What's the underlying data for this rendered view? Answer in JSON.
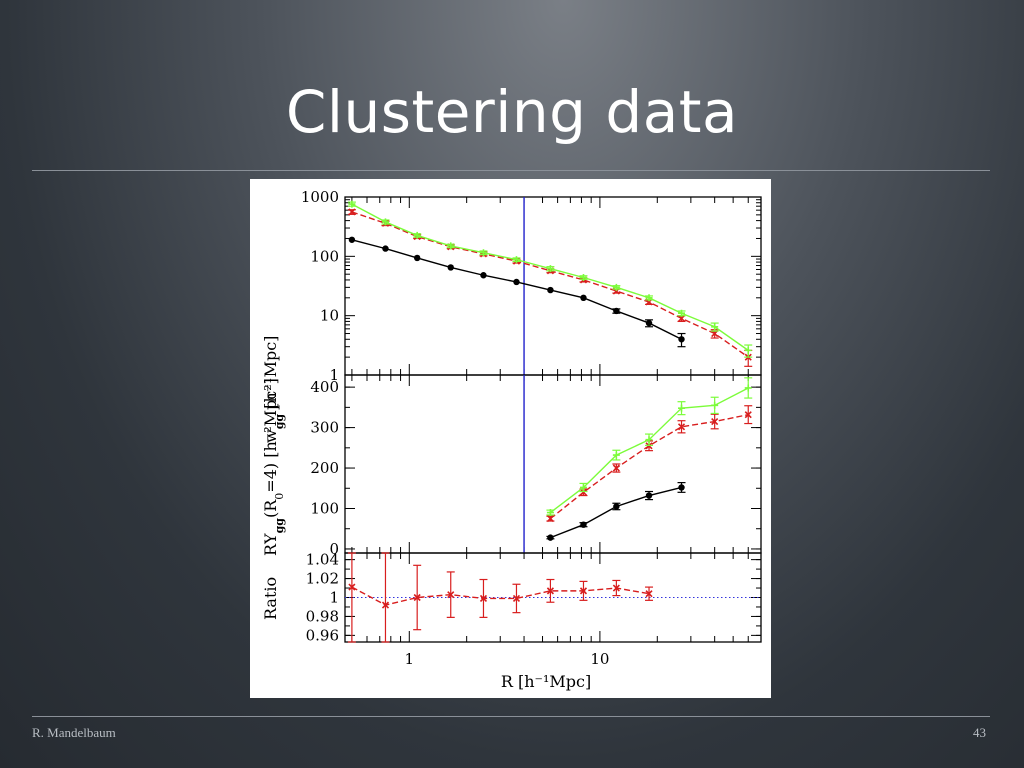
{
  "slide": {
    "title": "Clustering data",
    "footer_left": "R. Mandelbaum",
    "footer_right": "43"
  },
  "colors": {
    "black_series": "#000000",
    "red_series": "#d81e1e",
    "green_series": "#7cfc3a",
    "cut_line": "#2222cc",
    "ratio_reference": "#3333dd"
  },
  "chart_data": [
    {
      "type": "line",
      "panel": "top",
      "ylabel_main": "w",
      "ylabel_sub": "gg",
      "ylabel_rest": " [h⁻¹Mpc]",
      "yscale": "log",
      "xscale": "log",
      "ylim": [
        1,
        1000
      ],
      "xlim": [
        0.46,
        70
      ],
      "yticks": [
        1,
        10,
        100,
        1000
      ],
      "ytick_labels": [
        "1",
        "10",
        "100",
        "1000"
      ],
      "vertical_line_x": 4,
      "series": [
        {
          "color": "#000000",
          "style": "solid",
          "marker": "circle",
          "x": [
            0.5,
            0.75,
            1.1,
            1.65,
            2.45,
            3.65,
            5.5,
            8.2,
            12.2,
            18.1,
            26.8
          ],
          "y": [
            190,
            135,
            94,
            65,
            48,
            37,
            27,
            20,
            12,
            7.5,
            4
          ],
          "err": [
            0,
            0,
            0,
            0,
            0,
            0,
            0,
            0,
            1,
            1,
            1
          ]
        },
        {
          "color": "#d81e1e",
          "style": "dashed",
          "marker": "x",
          "x": [
            0.5,
            0.75,
            1.1,
            1.65,
            2.45,
            3.65,
            5.5,
            8.2,
            12.2,
            18.1,
            26.8,
            40,
            60
          ],
          "y": [
            560,
            360,
            215,
            145,
            110,
            83,
            57,
            40,
            26,
            17,
            9,
            5,
            2
          ],
          "err": [
            50,
            30,
            15,
            10,
            8,
            6,
            4,
            3,
            2,
            1.5,
            1,
            0.8,
            0.6
          ]
        },
        {
          "color": "#7cfc3a",
          "style": "solid",
          "marker": "plus",
          "x": [
            0.5,
            0.75,
            1.1,
            1.65,
            2.45,
            3.65,
            5.5,
            8.2,
            12.2,
            18.1,
            26.8,
            40,
            60
          ],
          "y": [
            760,
            380,
            225,
            150,
            115,
            88,
            62,
            44,
            30,
            20,
            11,
            6.5,
            2.6
          ],
          "err": [
            60,
            30,
            15,
            10,
            8,
            6,
            5,
            3,
            2,
            1.5,
            1,
            1,
            0.6
          ]
        }
      ]
    },
    {
      "type": "line",
      "panel": "middle",
      "ylabel_main": "RΥ",
      "ylabel_sub": "gg",
      "ylabel_rest": "(R",
      "ylabel_sub2": "0",
      "ylabel_rest2": "=4) [h⁻²Mpc²]",
      "yscale": "linear",
      "xscale": "log",
      "ylim": [
        -10,
        430
      ],
      "xlim": [
        0.46,
        70
      ],
      "yticks": [
        0,
        100,
        200,
        300,
        400
      ],
      "ytick_labels": [
        "0",
        "100",
        "200",
        "300",
        "400"
      ],
      "vertical_line_x": 4,
      "series": [
        {
          "color": "#000000",
          "style": "solid",
          "marker": "circle",
          "x": [
            5.5,
            8.2,
            12.2,
            18.1,
            26.8
          ],
          "y": [
            28,
            60,
            105,
            132,
            152
          ],
          "err": [
            3,
            5,
            8,
            10,
            12
          ]
        },
        {
          "color": "#d81e1e",
          "style": "dashed",
          "marker": "x",
          "x": [
            5.5,
            8.2,
            12.2,
            18.1,
            26.8,
            40,
            60
          ],
          "y": [
            75,
            140,
            200,
            255,
            302,
            315,
            332
          ],
          "err": [
            6,
            8,
            10,
            12,
            15,
            18,
            22
          ]
        },
        {
          "color": "#7cfc3a",
          "style": "solid",
          "marker": "plus",
          "x": [
            5.5,
            8.2,
            12.2,
            18.1,
            26.8,
            40,
            60
          ],
          "y": [
            90,
            152,
            232,
            270,
            348,
            355,
            398
          ],
          "err": [
            6,
            10,
            12,
            14,
            16,
            20,
            25
          ]
        }
      ]
    },
    {
      "type": "line",
      "panel": "bottom",
      "ylabel": "Ratio",
      "xlabel": "R [h⁻¹Mpc]",
      "yscale": "linear",
      "xscale": "log",
      "ylim": [
        0.953,
        1.047
      ],
      "xlim": [
        0.46,
        70
      ],
      "yticks": [
        0.96,
        0.98,
        1,
        1.02,
        1.04
      ],
      "ytick_labels": [
        "0.96",
        "0.98",
        "1",
        "1.02",
        "1.04"
      ],
      "xticks": [
        1,
        10
      ],
      "xtick_labels": [
        "1",
        "10"
      ],
      "reference_y": 1,
      "series": [
        {
          "color": "#d81e1e",
          "style": "dashed",
          "marker": "x",
          "x": [
            0.5,
            0.75,
            1.1,
            1.65,
            2.45,
            3.65,
            5.5,
            8.2,
            12.2,
            18.1
          ],
          "y": [
            1.011,
            0.992,
            1.0,
            1.003,
            0.999,
            0.999,
            1.007,
            1.007,
            1.01,
            1.004
          ],
          "err": [
            0.12,
            0.12,
            0.034,
            0.024,
            0.02,
            0.015,
            0.012,
            0.01,
            0.008,
            0.007
          ]
        }
      ]
    }
  ]
}
